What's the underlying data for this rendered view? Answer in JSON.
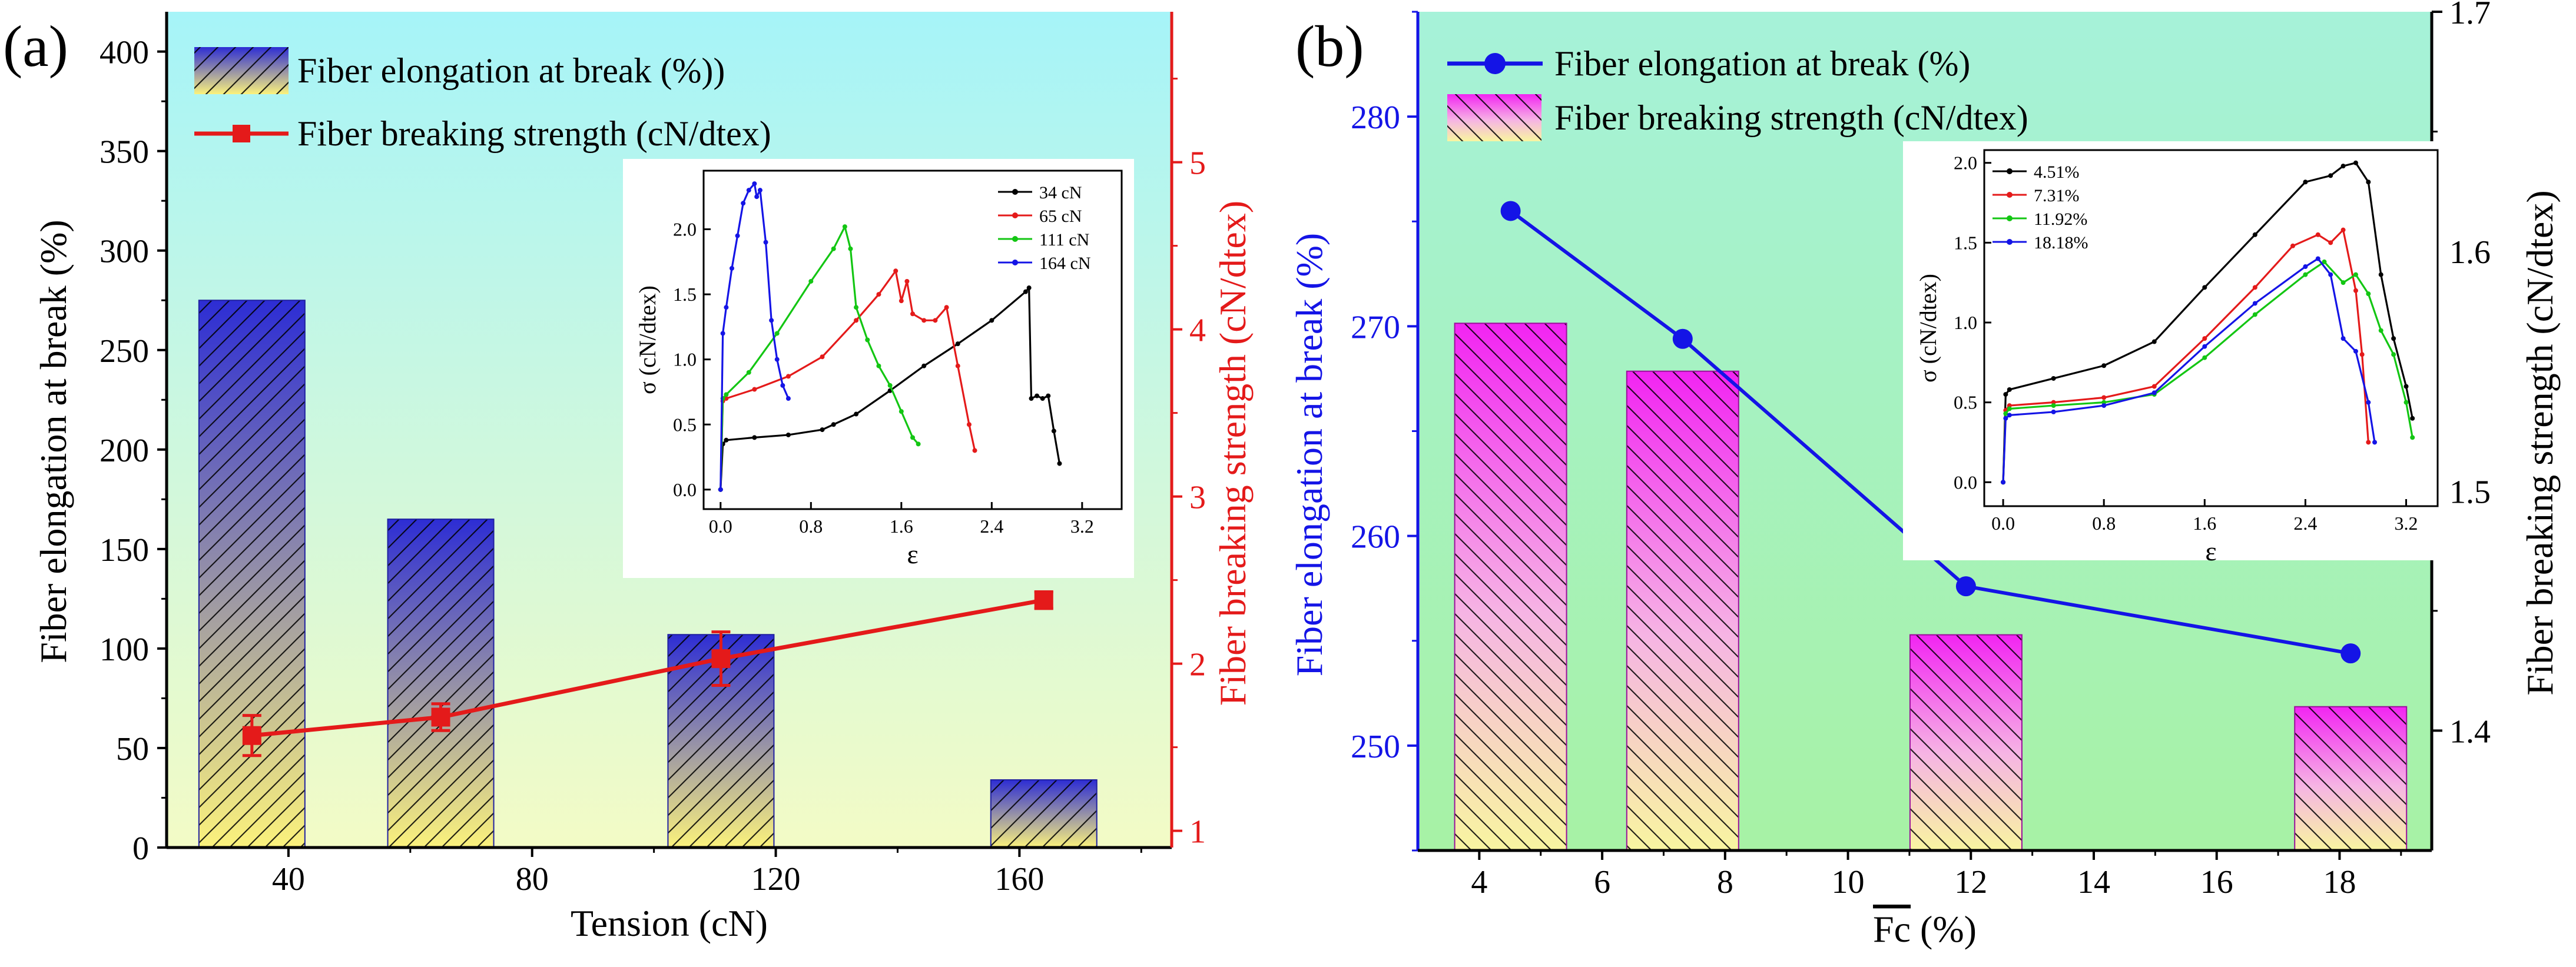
{
  "colors": {
    "blue": "#1414e6",
    "red": "#e41a1a",
    "magenta": "#ff1fff",
    "black": "#000000",
    "green": "#13c613",
    "bgA_top": "#a6f4f8",
    "bgA_bottom": "#f3fbc6",
    "bgB_top": "#a6f2d9",
    "bgB_bottom": "#a7f2a5",
    "bar_a_top": "#2d2dd4",
    "bar_a_bottom": "#fbf27c",
    "bar_b_top": "#f224f2",
    "bar_b_bottom": "#f8f5a0"
  },
  "chart_data": [
    {
      "panel_label": "(a)",
      "type": "bar+line",
      "title": "",
      "xlabel": "Tension (cN)",
      "ylabel_left": "Fiber elongation at break (%)",
      "ylabel_right": "Fiber breaking strength (cN/dtex)",
      "xlim": [
        20,
        185
      ],
      "xticks": [
        40,
        80,
        120,
        160
      ],
      "ylim_left": [
        0,
        420
      ],
      "yticks_left": [
        0,
        50,
        100,
        150,
        200,
        250,
        300,
        350,
        400
      ],
      "ylim_right": [
        0.9,
        5.9
      ],
      "yticks_right": [
        1,
        2,
        3,
        4,
        5
      ],
      "legend_position": "top-left",
      "series": [
        {
          "name": "Fiber elongation at break (%))",
          "type": "bar",
          "axis": "left",
          "x": [
            34,
            65,
            111,
            164
          ],
          "values": [
            275,
            165,
            107,
            34
          ],
          "errors": [
            0,
            0,
            0,
            0
          ]
        },
        {
          "name": "Fiber breaking strength (cN/dtex)",
          "type": "line",
          "axis": "right",
          "x": [
            34,
            65,
            111,
            164
          ],
          "values": [
            1.57,
            1.68,
            2.03,
            2.38
          ],
          "errors": [
            0.12,
            0.08,
            0.16,
            0.05
          ]
        }
      ],
      "inset": {
        "xlabel": "ε",
        "ylabel": "σ (cN/dtex)",
        "xlim": [
          -0.15,
          3.55
        ],
        "xticks": [
          "0.0",
          "0.8",
          "1.6",
          "2.4",
          "3.2"
        ],
        "xtick_values": [
          0,
          0.8,
          1.6,
          2.4,
          3.2
        ],
        "ylim": [
          -0.15,
          2.45
        ],
        "yticks": [
          "0.0",
          "0.5",
          "1.0",
          "1.5",
          "2.0"
        ],
        "ytick_values": [
          0,
          0.5,
          1.0,
          1.5,
          2.0
        ],
        "legend_position": "top-right",
        "series": [
          {
            "name": "34 cN",
            "color": "black",
            "x": [
              0,
              0.02,
              0.05,
              0.3,
              0.6,
              0.9,
              1.0,
              1.2,
              1.5,
              1.8,
              2.1,
              2.4,
              2.7,
              2.73,
              2.75,
              2.8,
              2.85,
              2.9,
              2.95,
              3.0
            ],
            "y": [
              0,
              0.35,
              0.38,
              0.4,
              0.42,
              0.46,
              0.5,
              0.58,
              0.76,
              0.95,
              1.12,
              1.3,
              1.52,
              1.55,
              0.7,
              0.72,
              0.7,
              0.72,
              0.45,
              0.2
            ]
          },
          {
            "name": "65 cN",
            "color": "red",
            "x": [
              0,
              0.02,
              0.05,
              0.3,
              0.6,
              0.9,
              1.2,
              1.4,
              1.55,
              1.6,
              1.65,
              1.7,
              1.8,
              1.9,
              2.0,
              2.1,
              2.2,
              2.25
            ],
            "y": [
              0,
              0.68,
              0.7,
              0.77,
              0.87,
              1.02,
              1.3,
              1.5,
              1.68,
              1.45,
              1.6,
              1.35,
              1.3,
              1.3,
              1.4,
              0.95,
              0.5,
              0.3
            ]
          },
          {
            "name": "111 cN",
            "color": "green",
            "x": [
              0,
              0.02,
              0.05,
              0.25,
              0.5,
              0.8,
              1.0,
              1.1,
              1.15,
              1.2,
              1.3,
              1.4,
              1.5,
              1.6,
              1.7,
              1.75
            ],
            "y": [
              0,
              0.7,
              0.73,
              0.9,
              1.2,
              1.6,
              1.85,
              2.02,
              1.85,
              1.4,
              1.15,
              0.95,
              0.8,
              0.6,
              0.4,
              0.35
            ]
          },
          {
            "name": "164 cN",
            "color": "blue",
            "x": [
              0,
              0.02,
              0.05,
              0.1,
              0.15,
              0.2,
              0.25,
              0.3,
              0.32,
              0.35,
              0.4,
              0.45,
              0.5,
              0.55,
              0.6
            ],
            "y": [
              0,
              1.2,
              1.4,
              1.7,
              1.95,
              2.2,
              2.3,
              2.35,
              2.25,
              2.3,
              1.9,
              1.3,
              1.0,
              0.8,
              0.7
            ]
          }
        ]
      }
    },
    {
      "panel_label": "(b)",
      "type": "bar+line",
      "title": "",
      "xlabel": "Fc (%)",
      "xlabel_overline": "Fc",
      "xlabel_suffix": " (%)",
      "ylabel_left": "Fiber elongation at break (%)",
      "ylabel_right": "Fiber breaking strength (cN/dtex)",
      "xlim": [
        3,
        19.5
      ],
      "xticks": [
        4,
        6,
        8,
        10,
        12,
        14,
        16,
        18
      ],
      "ylim_left": [
        245,
        285
      ],
      "yticks_left": [
        250,
        260,
        270,
        280
      ],
      "ylim_right": [
        1.35,
        1.7
      ],
      "yticks_right": [
        1.4,
        1.5,
        1.6,
        1.7
      ],
      "legend_position": "top-left",
      "series": [
        {
          "name": "Fiber elongation at break (%)",
          "type": "line",
          "axis": "left",
          "x": [
            4.51,
            7.31,
            11.92,
            18.18
          ],
          "values": [
            275.5,
            269.4,
            257.6,
            254.4
          ]
        },
        {
          "name": "Fiber breaking strength (cN/dtex)",
          "type": "bar",
          "axis": "right",
          "x": [
            4.51,
            7.31,
            11.92,
            18.18
          ],
          "values": [
            1.57,
            1.55,
            1.44,
            1.41
          ]
        }
      ],
      "inset": {
        "xlabel": "ε",
        "ylabel": "σ (cN/dtex)",
        "xlim": [
          -0.15,
          3.45
        ],
        "xticks": [
          "0.0",
          "0.8",
          "1.6",
          "2.4",
          "3.2"
        ],
        "xtick_values": [
          0,
          0.8,
          1.6,
          2.4,
          3.2
        ],
        "ylim": [
          -0.15,
          2.08
        ],
        "yticks": [
          "0.0",
          "0.5",
          "1.0",
          "1.5",
          "2.0"
        ],
        "ytick_values": [
          0,
          0.5,
          1.0,
          1.5,
          2.0
        ],
        "legend_position": "top-left",
        "series": [
          {
            "name": "4.51%",
            "color": "black",
            "x": [
              0,
              0.02,
              0.05,
              0.4,
              0.8,
              1.2,
              1.6,
              2.0,
              2.4,
              2.6,
              2.7,
              2.8,
              2.9,
              3.0,
              3.1,
              3.2,
              3.25
            ],
            "y": [
              0,
              0.55,
              0.58,
              0.65,
              0.73,
              0.88,
              1.22,
              1.55,
              1.88,
              1.92,
              1.98,
              2.0,
              1.88,
              1.3,
              0.9,
              0.6,
              0.4
            ]
          },
          {
            "name": "7.31%",
            "color": "red",
            "x": [
              0,
              0.02,
              0.05,
              0.4,
              0.8,
              1.2,
              1.6,
              2.0,
              2.3,
              2.5,
              2.6,
              2.7,
              2.8,
              2.85,
              2.9
            ],
            "y": [
              0,
              0.45,
              0.48,
              0.5,
              0.53,
              0.6,
              0.9,
              1.22,
              1.48,
              1.55,
              1.5,
              1.58,
              1.2,
              0.8,
              0.25
            ]
          },
          {
            "name": "11.92%",
            "color": "green",
            "x": [
              0,
              0.02,
              0.05,
              0.4,
              0.8,
              1.2,
              1.6,
              2.0,
              2.4,
              2.55,
              2.7,
              2.8,
              2.9,
              3.0,
              3.1,
              3.2,
              3.25
            ],
            "y": [
              0,
              0.43,
              0.46,
              0.48,
              0.5,
              0.55,
              0.78,
              1.05,
              1.3,
              1.38,
              1.25,
              1.3,
              1.18,
              0.95,
              0.8,
              0.5,
              0.28
            ]
          },
          {
            "name": "18.18%",
            "color": "blue",
            "x": [
              0,
              0.02,
              0.05,
              0.4,
              0.8,
              1.2,
              1.6,
              2.0,
              2.4,
              2.5,
              2.6,
              2.7,
              2.8,
              2.9,
              2.95
            ],
            "y": [
              0,
              0.4,
              0.42,
              0.44,
              0.48,
              0.56,
              0.85,
              1.12,
              1.35,
              1.4,
              1.3,
              0.9,
              0.82,
              0.5,
              0.25
            ]
          }
        ]
      }
    }
  ]
}
